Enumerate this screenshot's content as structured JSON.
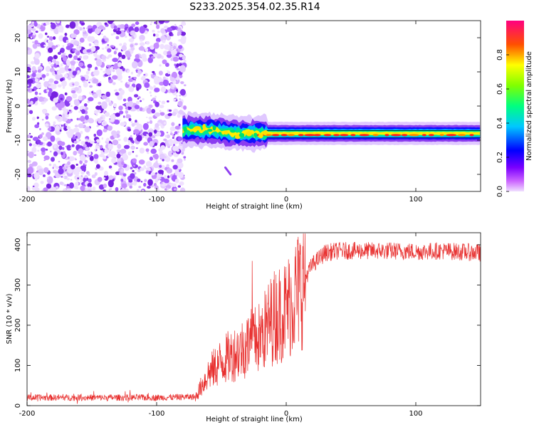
{
  "title": "S233.2025.354.02.35.R14",
  "chart_data": [
    {
      "type": "heatmap",
      "xlabel": "Height of straight line (km)",
      "ylabel": "Frequency (Hz)",
      "xlim": [
        -200,
        150
      ],
      "ylim": [
        -25,
        25
      ],
      "x_ticks": [
        -200,
        -100,
        0,
        100
      ],
      "y_ticks": [
        -20,
        -10,
        0,
        10,
        20
      ],
      "colorbar": {
        "label": "Normalized spectral amplitude",
        "range": [
          0,
          1
        ],
        "ticks": [
          "0.0",
          "0.2",
          "0.4",
          "0.6",
          "0.8"
        ]
      },
      "features": [
        {
          "name": "noise region",
          "x_range": [
            -200,
            -78
          ],
          "y_range": [
            -25,
            25
          ]
        },
        {
          "name": "signal trace",
          "points": [
            [
              -80,
              -7
            ],
            [
              -60,
              -7
            ],
            [
              -40,
              -8
            ],
            [
              -20,
              -8
            ],
            [
              0,
              -8
            ],
            [
              50,
              -8
            ],
            [
              100,
              -8
            ],
            [
              150,
              -8
            ]
          ]
        },
        {
          "name": "stray signal",
          "points": [
            [
              -47,
              -18
            ],
            [
              -43,
              -20
            ]
          ]
        }
      ]
    },
    {
      "type": "line",
      "xlabel": "Height of straight line (km)",
      "ylabel": "SNR (10 * v/v)",
      "xlim": [
        -200,
        150
      ],
      "ylim": [
        0,
        430
      ],
      "x_ticks": [
        -200,
        -100,
        0,
        100
      ],
      "y_ticks": [
        0,
        100,
        200,
        300,
        400
      ],
      "color": "#e8302f",
      "series": [
        {
          "name": "SNR",
          "x": [
            -200,
            -150,
            -100,
            -70,
            -60,
            -50,
            -40,
            -30,
            -20,
            -10,
            0,
            10,
            20,
            30,
            40,
            60,
            80,
            100,
            120,
            150
          ],
          "y": [
            20,
            20,
            20,
            22,
            80,
            110,
            130,
            150,
            170,
            220,
            240,
            290,
            350,
            380,
            385,
            385,
            385,
            383,
            385,
            380
          ]
        }
      ]
    }
  ]
}
